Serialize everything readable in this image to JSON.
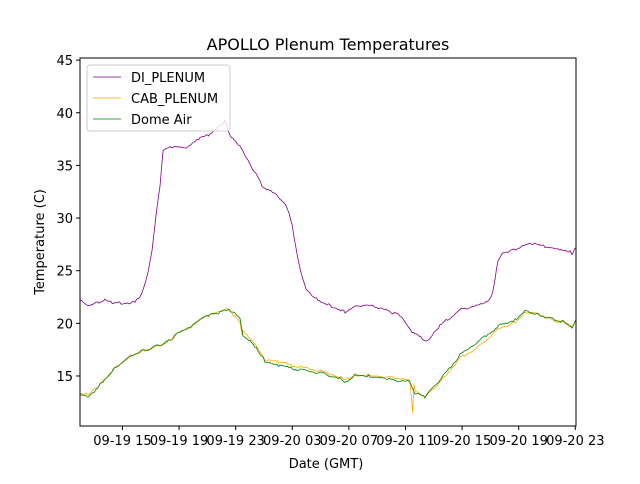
{
  "chart_data": {
    "type": "line",
    "title": "APOLLO Plenum Temperatures",
    "xlabel": "Date (GMT)",
    "ylabel": "Temperature (C)",
    "x_units": "hours since 09-19 00:00 GMT",
    "xlim": [
      12.0,
      47.05
    ],
    "ylim": [
      10.25,
      45.2
    ],
    "grid": false,
    "legend_position": "top-left",
    "x_ticks": [
      {
        "value": 15,
        "label": "09-19 15"
      },
      {
        "value": 19,
        "label": "09-19 19"
      },
      {
        "value": 23,
        "label": "09-19 23"
      },
      {
        "value": 27,
        "label": "09-20 03"
      },
      {
        "value": 31,
        "label": "09-20 07"
      },
      {
        "value": 35,
        "label": "09-20 11"
      },
      {
        "value": 39,
        "label": "09-20 15"
      },
      {
        "value": 43,
        "label": "09-20 19"
      },
      {
        "value": 47,
        "label": "09-20 23"
      }
    ],
    "y_ticks": [
      15,
      20,
      25,
      30,
      35,
      40,
      45
    ],
    "series": [
      {
        "name": "DI_PLENUM",
        "color": "#800080",
        "x": [
          12.0,
          12.57,
          13.77,
          14.47,
          15.89,
          16.38,
          16.81,
          17.09,
          17.37,
          17.65,
          17.87,
          18.5,
          19.63,
          20.48,
          21.19,
          21.75,
          22.25,
          22.6,
          23.3,
          23.87,
          24.86,
          26.13,
          26.7,
          26.98,
          27.27,
          27.55,
          27.97,
          28.6,
          29.67,
          30.73,
          31.43,
          32.85,
          33.91,
          34.6,
          35.46,
          36.59,
          37.44,
          38.85,
          40.62,
          41.12,
          41.54,
          41.82,
          42.74,
          43.8,
          44.86,
          45.57,
          46.63,
          46.77,
          47.05
        ],
        "y": [
          22.2,
          21.6,
          22.2,
          21.9,
          22.0,
          22.8,
          24.9,
          27.0,
          30.3,
          33.1,
          36.5,
          36.7,
          36.7,
          37.6,
          37.9,
          38.6,
          39.2,
          37.9,
          36.9,
          35.5,
          33.1,
          31.9,
          30.8,
          29.3,
          27.0,
          25.1,
          23.2,
          22.4,
          21.7,
          21.1,
          21.7,
          21.6,
          21.1,
          20.8,
          19.1,
          18.3,
          19.8,
          21.3,
          21.9,
          22.7,
          26.0,
          26.7,
          27.0,
          27.6,
          27.3,
          27.0,
          26.8,
          26.5,
          27.2
        ]
      },
      {
        "name": "CAB_PLENUM",
        "color": "#ffa500",
        "x": [
          12.0,
          12.71,
          13.41,
          14.47,
          15.53,
          16.59,
          17.65,
          18.36,
          19.07,
          19.77,
          20.48,
          21.19,
          21.89,
          22.46,
          22.95,
          23.31,
          23.45,
          23.52,
          24.01,
          24.58,
          25.07,
          26.13,
          27.55,
          28.96,
          30.37,
          30.73,
          31.43,
          32.49,
          33.2,
          34.26,
          35.32,
          35.5,
          35.6,
          35.67,
          36.38,
          37.44,
          38.85,
          40.27,
          41.68,
          42.74,
          43.45,
          44.51,
          45.57,
          46.28,
          46.77,
          47.05
        ],
        "y": [
          13.2,
          13.3,
          14.2,
          15.8,
          16.9,
          17.5,
          17.9,
          18.4,
          19.2,
          19.6,
          20.3,
          20.8,
          21.1,
          21.3,
          20.6,
          20.0,
          19.0,
          19.4,
          18.6,
          17.7,
          16.5,
          16.3,
          15.8,
          15.5,
          14.9,
          14.6,
          15.1,
          15.1,
          15.0,
          14.8,
          14.6,
          11.6,
          14.3,
          13.5,
          13.0,
          14.4,
          16.7,
          17.9,
          19.6,
          20.1,
          21.1,
          20.8,
          20.2,
          20.1,
          19.6,
          20.3
        ]
      },
      {
        "name": "Dome Air",
        "color": "#008000",
        "x": [
          12.0,
          12.71,
          13.41,
          14.47,
          15.53,
          16.59,
          17.65,
          18.36,
          19.07,
          19.77,
          20.48,
          21.19,
          21.89,
          22.46,
          22.95,
          23.31,
          23.52,
          24.01,
          24.58,
          25.07,
          26.13,
          27.55,
          28.96,
          30.37,
          30.73,
          31.43,
          32.49,
          33.2,
          34.26,
          35.32,
          35.67,
          36.38,
          37.44,
          38.85,
          40.27,
          41.68,
          42.74,
          43.45,
          44.51,
          45.57,
          46.28,
          46.77,
          47.05
        ],
        "y": [
          13.1,
          13.1,
          14.15,
          15.76,
          16.9,
          17.47,
          17.94,
          18.42,
          19.18,
          19.56,
          20.32,
          20.8,
          21.0,
          21.27,
          21.0,
          20.5,
          18.9,
          18.4,
          17.47,
          16.33,
          15.95,
          15.57,
          15.28,
          14.8,
          14.33,
          15.1,
          15.0,
          14.9,
          14.6,
          14.43,
          13.4,
          13.0,
          14.6,
          17.0,
          18.42,
          19.84,
          20.32,
          21.27,
          20.8,
          20.32,
          20.1,
          19.56,
          20.32
        ]
      }
    ]
  }
}
